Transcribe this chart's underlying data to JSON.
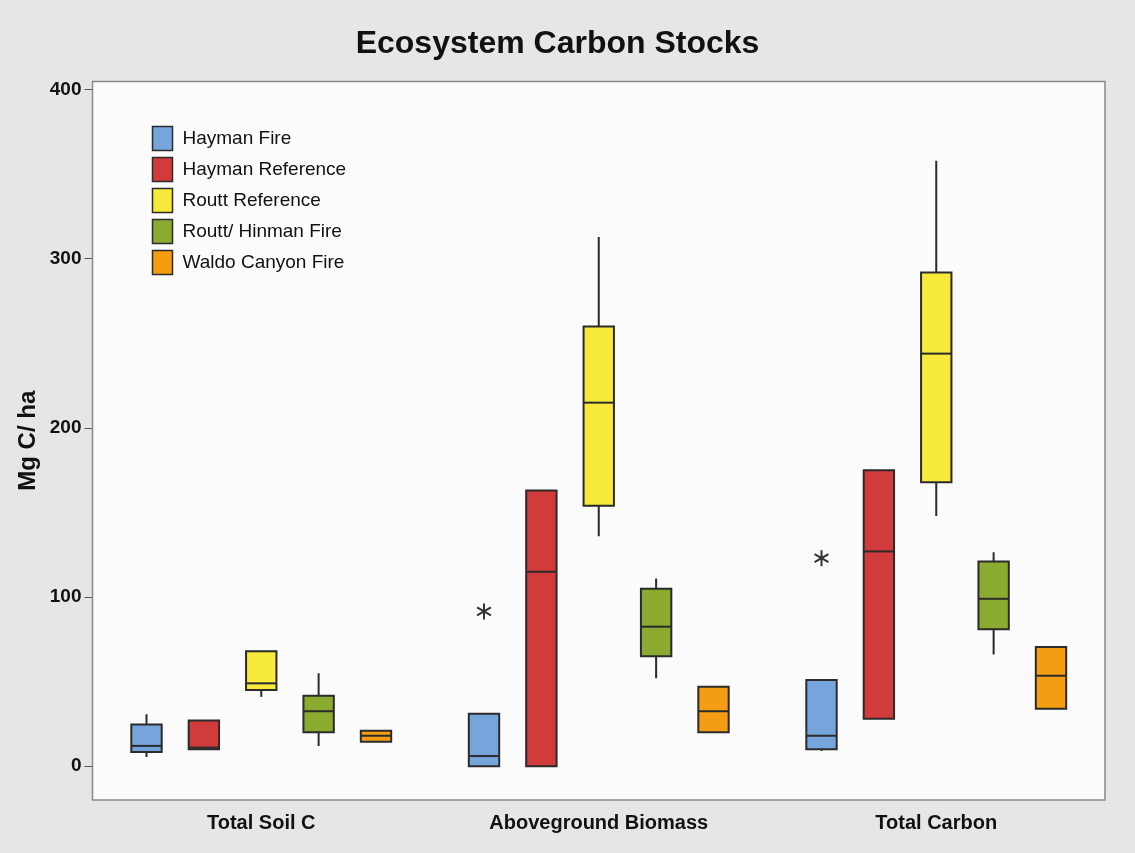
{
  "chart_data": {
    "type": "box",
    "title": "Ecosystem Carbon Stocks",
    "ylabel": "Mg C/ ha",
    "categories": [
      "Total Soil C",
      "Aboveground Biomass",
      "Total Carbon"
    ],
    "ylim": [
      -20,
      405
    ],
    "yticks": [
      0,
      100,
      200,
      300,
      400
    ],
    "grid": false,
    "legend": "top left",
    "series": [
      {
        "name": "Hayman Fire",
        "color": "#76a5dc",
        "boxes": [
          {
            "low": 5.4,
            "q1": 8.4,
            "median": 12,
            "q3": 24.7,
            "high": 30.7
          },
          {
            "low": 0,
            "q1": 0,
            "median": 6,
            "q3": 31,
            "high": 31,
            "outliers": [
              91.5
            ]
          },
          {
            "low": 9,
            "q1": 10,
            "median": 18,
            "q3": 51,
            "high": 51,
            "outliers": [
              123
            ]
          }
        ]
      },
      {
        "name": "Hayman Reference",
        "color": "#d13b3b",
        "boxes": [
          {
            "low": 10,
            "q1": 10,
            "median": 11,
            "q3": 27,
            "high": 27
          },
          {
            "low": 0,
            "q1": 0,
            "median": 115,
            "q3": 163,
            "high": 163
          },
          {
            "low": 28,
            "q1": 28,
            "median": 127,
            "q3": 175,
            "high": 175
          }
        ]
      },
      {
        "name": "Routt Reference",
        "color": "#f7ea3a",
        "boxes": [
          {
            "low": 41,
            "q1": 45,
            "median": 49,
            "q3": 68,
            "high": 68
          },
          {
            "low": 136,
            "q1": 154,
            "median": 215,
            "q3": 260,
            "high": 313
          },
          {
            "low": 148,
            "q1": 168,
            "median": 244,
            "q3": 292,
            "high": 358
          }
        ]
      },
      {
        "name": "Routt/ Hinman Fire",
        "color": "#8aab2f",
        "boxes": [
          {
            "low": 12,
            "q1": 20,
            "median": 32.5,
            "q3": 41.6,
            "high": 55
          },
          {
            "low": 52,
            "q1": 65,
            "median": 82.5,
            "q3": 105,
            "high": 111
          },
          {
            "low": 66,
            "q1": 81,
            "median": 99,
            "q3": 121,
            "high": 126.5
          }
        ]
      },
      {
        "name": "Waldo Canyon Fire",
        "color": "#f59d12",
        "boxes": [
          {
            "low": 14.5,
            "q1": 14.5,
            "median": 18,
            "q3": 21,
            "high": 21
          },
          {
            "low": 20,
            "q1": 20,
            "median": 32.5,
            "q3": 47,
            "high": 47
          },
          {
            "low": 34,
            "q1": 34,
            "median": 53.5,
            "q3": 70.5,
            "high": 70.5
          }
        ]
      }
    ]
  }
}
